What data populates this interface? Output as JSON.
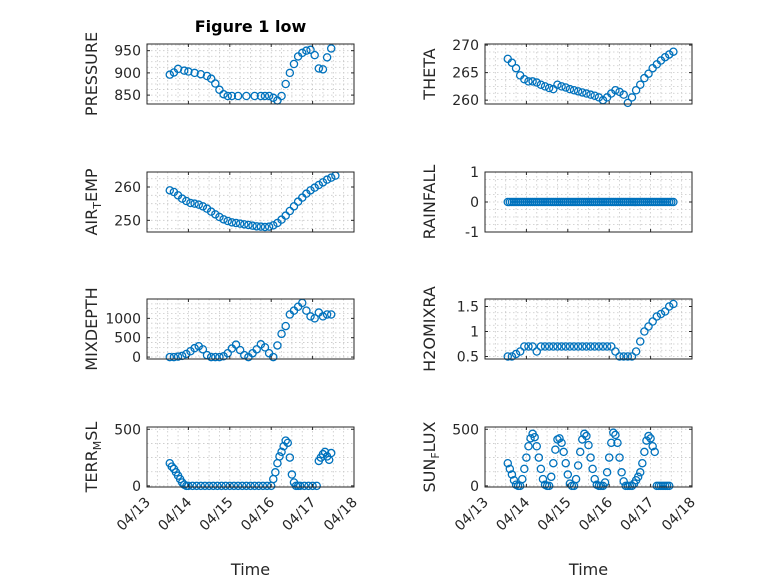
{
  "figure": {
    "title": "Figure 1 low",
    "bg": "#ffffff",
    "axes_color": "#262626",
    "series_color": "#0072BD"
  },
  "date_ticks": [
    "04/13",
    "04/14",
    "04/15",
    "04/16",
    "04/17",
    "04/18"
  ],
  "chart_data": [
    {
      "type": "scatter",
      "ylabel": "PRESSURE",
      "title": "Figure 1 low",
      "xlim": [
        0,
        5
      ],
      "ylim": [
        830,
        965
      ],
      "yticks": [
        850,
        900,
        950
      ],
      "show_xticklabels": false,
      "grid": true,
      "x": [
        0.55,
        0.65,
        0.75,
        0.9,
        1.0,
        1.15,
        1.3,
        1.45,
        1.55,
        1.65,
        1.75,
        1.85,
        1.95,
        2.05,
        2.2,
        2.4,
        2.6,
        2.75,
        2.85,
        2.95,
        3.05,
        3.15,
        3.25,
        3.35,
        3.45,
        3.55,
        3.65,
        3.75,
        3.85,
        3.95,
        4.05,
        4.15,
        4.25,
        4.35,
        4.45
      ],
      "y": [
        896,
        901,
        909,
        905,
        903,
        900,
        897,
        893,
        887,
        876,
        862,
        852,
        848,
        848,
        848,
        848,
        848,
        848,
        848,
        848,
        844,
        838,
        848,
        875,
        900,
        920,
        937,
        945,
        950,
        952,
        940,
        910,
        908,
        935,
        955
      ]
    },
    {
      "type": "scatter",
      "ylabel": "THETA",
      "xlim": [
        0,
        5
      ],
      "ylim": [
        259.3,
        270.2
      ],
      "yticks": [
        260,
        265,
        270
      ],
      "show_xticklabels": false,
      "grid": true,
      "x": [
        0.55,
        0.65,
        0.75,
        0.85,
        0.95,
        1.05,
        1.15,
        1.25,
        1.35,
        1.45,
        1.55,
        1.65,
        1.75,
        1.85,
        1.95,
        2.05,
        2.15,
        2.25,
        2.35,
        2.45,
        2.55,
        2.65,
        2.75,
        2.85,
        2.95,
        3.05,
        3.15,
        3.25,
        3.35,
        3.45,
        3.55,
        3.65,
        3.75,
        3.85,
        3.95,
        4.05,
        4.15,
        4.25,
        4.35,
        4.45,
        4.55
      ],
      "y": [
        267.5,
        266.8,
        265.8,
        264.5,
        263.8,
        263.4,
        263.4,
        263.2,
        262.8,
        262.5,
        262.2,
        262.0,
        262.8,
        262.5,
        262.3,
        262.0,
        261.8,
        261.6,
        261.4,
        261.2,
        261.0,
        260.8,
        260.5,
        260.0,
        260.5,
        261.2,
        261.8,
        261.5,
        261.0,
        259.5,
        260.5,
        261.8,
        262.8,
        264.0,
        264.8,
        265.8,
        266.5,
        267.2,
        267.8,
        268.3,
        268.8
      ]
    },
    {
      "type": "scatter",
      "ylabel": "AIR_TEMP",
      "ylabel_main": "AIR",
      "ylabel_sub": "T",
      "ylabel_rest": "EMP",
      "xlim": [
        0,
        5
      ],
      "ylim": [
        246.5,
        264.5
      ],
      "yticks": [
        250,
        260
      ],
      "show_xticklabels": false,
      "grid": true,
      "x": [
        0.55,
        0.65,
        0.75,
        0.85,
        0.95,
        1.05,
        1.15,
        1.25,
        1.35,
        1.45,
        1.55,
        1.65,
        1.75,
        1.85,
        1.95,
        2.05,
        2.15,
        2.25,
        2.35,
        2.45,
        2.55,
        2.65,
        2.75,
        2.85,
        2.95,
        3.05,
        3.15,
        3.25,
        3.35,
        3.45,
        3.55,
        3.65,
        3.75,
        3.85,
        3.95,
        4.05,
        4.15,
        4.25,
        4.35,
        4.45,
        4.55
      ],
      "y": [
        259,
        258.5,
        257.5,
        256.5,
        255.8,
        255.2,
        255,
        254.7,
        254.2,
        253.5,
        252.6,
        251.8,
        251,
        250.3,
        249.8,
        249.4,
        249.2,
        249,
        248.8,
        248.6,
        248.4,
        248.2,
        248.1,
        248,
        248.1,
        248.5,
        249.2,
        250.2,
        251.4,
        252.8,
        254.2,
        255.6,
        256.8,
        258,
        259,
        259.8,
        260.6,
        261.4,
        262.2,
        262.8,
        263.4
      ]
    },
    {
      "type": "scatter",
      "ylabel": "RAINFALL",
      "xlim": [
        0,
        5
      ],
      "ylim": [
        -1,
        1
      ],
      "yticks": [
        -1,
        0,
        1
      ],
      "show_xticklabels": false,
      "grid": true,
      "x": [
        0.55,
        0.6,
        0.65,
        0.7,
        0.75,
        0.8,
        0.85,
        0.9,
        0.95,
        1.0,
        1.05,
        1.1,
        1.15,
        1.2,
        1.25,
        1.3,
        1.35,
        1.4,
        1.45,
        1.5,
        1.55,
        1.6,
        1.65,
        1.7,
        1.75,
        1.8,
        1.85,
        1.9,
        1.95,
        2.0,
        2.05,
        2.1,
        2.15,
        2.2,
        2.25,
        2.3,
        2.35,
        2.4,
        2.45,
        2.5,
        2.55,
        2.6,
        2.65,
        2.7,
        2.75,
        2.8,
        2.85,
        2.9,
        2.95,
        3.0,
        3.05,
        3.1,
        3.15,
        3.2,
        3.25,
        3.3,
        3.35,
        3.4,
        3.45,
        3.5,
        3.55,
        3.6,
        3.65,
        3.7,
        3.75,
        3.8,
        3.85,
        3.9,
        3.95,
        4.0,
        4.05,
        4.1,
        4.15,
        4.2,
        4.25,
        4.3,
        4.35,
        4.4,
        4.45,
        4.5,
        4.55
      ],
      "y": [
        0,
        0,
        0,
        0,
        0,
        0,
        0,
        0,
        0,
        0,
        0,
        0,
        0,
        0,
        0,
        0,
        0,
        0,
        0,
        0,
        0,
        0,
        0,
        0,
        0,
        0,
        0,
        0,
        0,
        0,
        0,
        0,
        0,
        0,
        0,
        0,
        0,
        0,
        0,
        0,
        0,
        0,
        0,
        0,
        0,
        0,
        0,
        0,
        0,
        0,
        0,
        0,
        0,
        0,
        0,
        0,
        0,
        0,
        0,
        0,
        0,
        0,
        0,
        0,
        0,
        0,
        0,
        0,
        0,
        0,
        0,
        0,
        0,
        0,
        0,
        0,
        0,
        0,
        0,
        0,
        0
      ]
    },
    {
      "type": "scatter",
      "ylabel": "MIXDEPTH",
      "xlim": [
        0,
        5
      ],
      "ylim": [
        -50,
        1500
      ],
      "yticks": [
        0,
        500,
        1000
      ],
      "show_xticklabels": false,
      "grid": true,
      "x": [
        0.55,
        0.65,
        0.75,
        0.85,
        0.95,
        1.05,
        1.15,
        1.25,
        1.35,
        1.45,
        1.55,
        1.65,
        1.75,
        1.85,
        1.95,
        2.05,
        2.15,
        2.25,
        2.35,
        2.45,
        2.55,
        2.65,
        2.75,
        2.85,
        2.95,
        3.05,
        3.15,
        3.25,
        3.35,
        3.45,
        3.55,
        3.65,
        3.75,
        3.85,
        3.95,
        4.05,
        4.15,
        4.25,
        4.35,
        4.45
      ],
      "y": [
        0,
        0,
        10,
        30,
        80,
        150,
        230,
        280,
        200,
        50,
        0,
        0,
        0,
        20,
        100,
        220,
        320,
        180,
        50,
        0,
        100,
        200,
        330,
        250,
        100,
        0,
        300,
        600,
        800,
        1100,
        1200,
        1300,
        1400,
        1200,
        1050,
        1000,
        1150,
        1050,
        1100,
        1100
      ]
    },
    {
      "type": "scatter",
      "ylabel": "H2OMIXRA",
      "xlim": [
        0,
        5
      ],
      "ylim": [
        0.45,
        1.65
      ],
      "yticks": [
        0.5,
        1,
        1.5
      ],
      "show_xticklabels": false,
      "grid": true,
      "x": [
        0.55,
        0.65,
        0.75,
        0.85,
        0.95,
        1.05,
        1.15,
        1.25,
        1.35,
        1.45,
        1.55,
        1.65,
        1.75,
        1.85,
        1.95,
        2.05,
        2.15,
        2.25,
        2.35,
        2.45,
        2.55,
        2.65,
        2.75,
        2.85,
        2.95,
        3.05,
        3.15,
        3.25,
        3.35,
        3.45,
        3.55,
        3.65,
        3.75,
        3.85,
        3.95,
        4.05,
        4.15,
        4.25,
        4.35,
        4.45,
        4.55
      ],
      "y": [
        0.5,
        0.5,
        0.55,
        0.6,
        0.7,
        0.7,
        0.7,
        0.6,
        0.7,
        0.7,
        0.7,
        0.7,
        0.7,
        0.7,
        0.7,
        0.7,
        0.7,
        0.7,
        0.7,
        0.7,
        0.7,
        0.7,
        0.7,
        0.7,
        0.7,
        0.7,
        0.6,
        0.5,
        0.5,
        0.5,
        0.5,
        0.6,
        0.8,
        1.0,
        1.1,
        1.2,
        1.3,
        1.35,
        1.4,
        1.5,
        1.55
      ]
    },
    {
      "type": "scatter",
      "ylabel": "TERR_MSL",
      "ylabel_main": "TERR",
      "ylabel_sub": "M",
      "ylabel_rest": "SL",
      "xlim": [
        0,
        5
      ],
      "ylim": [
        -10,
        520
      ],
      "yticks": [
        0,
        500
      ],
      "show_xticklabels": true,
      "xlabel": "Time",
      "grid": true,
      "x": [
        0.55,
        0.6,
        0.65,
        0.7,
        0.75,
        0.8,
        0.85,
        0.9,
        0.95,
        1.0,
        1.1,
        1.2,
        1.3,
        1.4,
        1.5,
        1.6,
        1.7,
        1.8,
        1.9,
        2.0,
        2.1,
        2.2,
        2.3,
        2.4,
        2.5,
        2.6,
        2.7,
        2.8,
        2.9,
        3.0,
        3.05,
        3.1,
        3.15,
        3.2,
        3.25,
        3.3,
        3.35,
        3.4,
        3.45,
        3.5,
        3.55,
        3.6,
        3.65,
        3.7,
        3.8,
        3.9,
        4.0,
        4.1,
        4.15,
        4.2,
        4.25,
        4.3,
        4.35,
        4.4,
        4.45
      ],
      "y": [
        200,
        170,
        150,
        120,
        90,
        60,
        30,
        10,
        0,
        0,
        0,
        0,
        0,
        0,
        0,
        0,
        0,
        0,
        0,
        0,
        0,
        0,
        0,
        0,
        0,
        0,
        0,
        0,
        0,
        0,
        60,
        120,
        200,
        260,
        300,
        350,
        400,
        380,
        250,
        100,
        30,
        0,
        0,
        0,
        0,
        0,
        0,
        0,
        220,
        250,
        280,
        300,
        260,
        230,
        290
      ]
    },
    {
      "type": "scatter",
      "ylabel": "SUN_FLUX",
      "ylabel_main": "SUN",
      "ylabel_sub": "F",
      "ylabel_rest": "LUX",
      "xlim": [
        0,
        5
      ],
      "ylim": [
        -10,
        520
      ],
      "yticks": [
        0,
        500
      ],
      "show_xticklabels": true,
      "xlabel": "Time",
      "grid": true,
      "x": [
        0.55,
        0.6,
        0.65,
        0.7,
        0.75,
        0.8,
        0.85,
        0.9,
        0.95,
        1.0,
        1.05,
        1.1,
        1.15,
        1.2,
        1.25,
        1.3,
        1.35,
        1.4,
        1.45,
        1.5,
        1.55,
        1.6,
        1.65,
        1.7,
        1.75,
        1.8,
        1.85,
        1.9,
        1.95,
        2.0,
        2.05,
        2.1,
        2.15,
        2.2,
        2.25,
        2.3,
        2.35,
        2.4,
        2.45,
        2.5,
        2.55,
        2.6,
        2.65,
        2.7,
        2.75,
        2.8,
        2.85,
        2.9,
        2.95,
        3.0,
        3.05,
        3.1,
        3.15,
        3.2,
        3.25,
        3.3,
        3.35,
        3.4,
        3.45,
        3.5,
        3.55,
        3.6,
        3.65,
        3.7,
        3.75,
        3.8,
        3.85,
        3.9,
        3.95,
        4.0,
        4.05,
        4.1,
        4.15,
        4.2,
        4.25,
        4.3,
        4.35,
        4.4,
        4.45
      ],
      "y": [
        200,
        150,
        100,
        50,
        10,
        0,
        0,
        60,
        150,
        250,
        350,
        420,
        460,
        430,
        350,
        250,
        150,
        60,
        10,
        0,
        0,
        80,
        200,
        320,
        410,
        420,
        380,
        300,
        200,
        100,
        20,
        0,
        0,
        60,
        180,
        300,
        410,
        460,
        440,
        360,
        250,
        150,
        60,
        10,
        0,
        0,
        0,
        30,
        120,
        250,
        380,
        470,
        450,
        380,
        250,
        120,
        40,
        0,
        0,
        0,
        0,
        20,
        50,
        80,
        120,
        200,
        300,
        400,
        440,
        420,
        350,
        300,
        0,
        0,
        0,
        0,
        0,
        0,
        0
      ]
    }
  ]
}
